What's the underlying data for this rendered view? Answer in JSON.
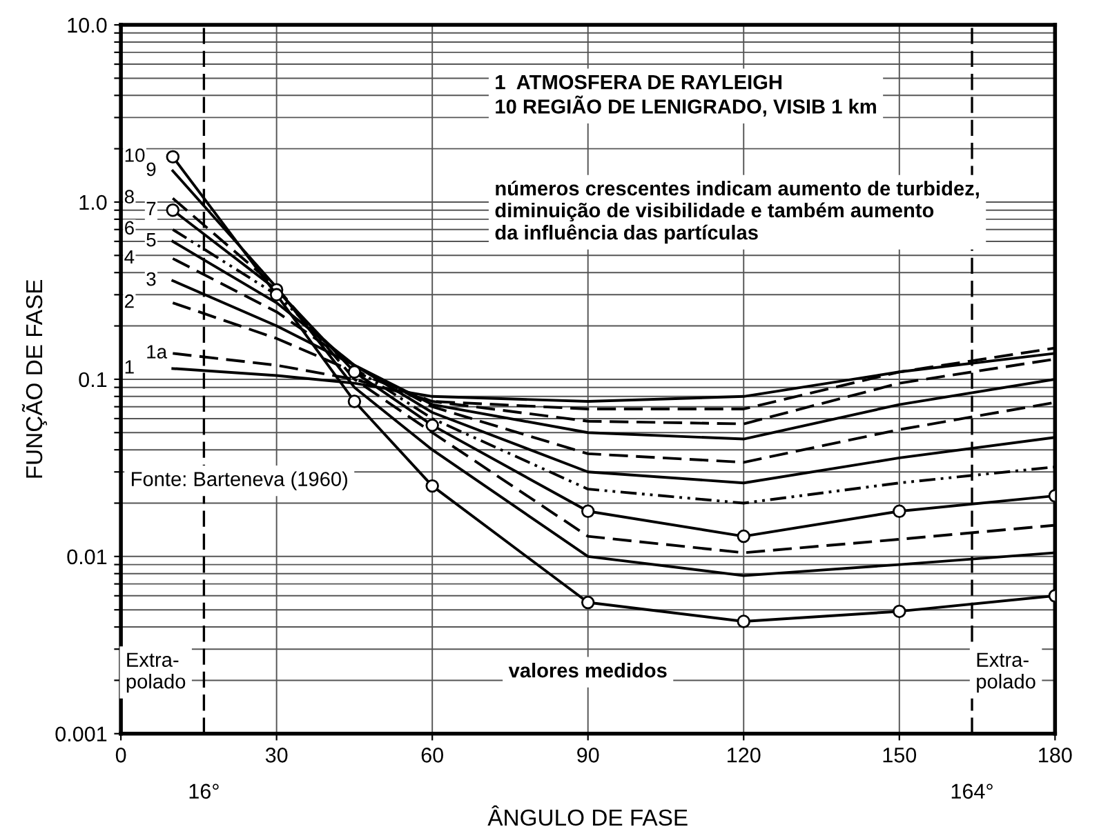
{
  "chart_data": {
    "type": "line",
    "xlabel": "ÂNGULO DE FASE",
    "ylabel": "FUNÇÃO DE FASE",
    "log": "y",
    "xlim": [
      0,
      180
    ],
    "ylim": [
      0.001,
      10
    ],
    "xticks": [
      0,
      30,
      60,
      90,
      120,
      150,
      180
    ],
    "yticks": [
      {
        "value": 0.001,
        "label": "0.001"
      },
      {
        "value": 0.002,
        "label": null
      },
      {
        "value": 0.003,
        "label": null
      },
      {
        "value": 0.004,
        "label": null
      },
      {
        "value": 0.005,
        "label": null
      },
      {
        "value": 0.006,
        "label": null
      },
      {
        "value": 0.007,
        "label": null
      },
      {
        "value": 0.008,
        "label": null
      },
      {
        "value": 0.009,
        "label": null
      },
      {
        "value": 0.01,
        "label": "0.01"
      },
      {
        "value": 0.02,
        "label": null
      },
      {
        "value": 0.03,
        "label": null
      },
      {
        "value": 0.04,
        "label": null
      },
      {
        "value": 0.05,
        "label": null
      },
      {
        "value": 0.06,
        "label": null
      },
      {
        "value": 0.07,
        "label": null
      },
      {
        "value": 0.08,
        "label": null
      },
      {
        "value": 0.09,
        "label": null
      },
      {
        "value": 0.1,
        "label": "0.1"
      },
      {
        "value": 0.2,
        "label": null
      },
      {
        "value": 0.3,
        "label": null
      },
      {
        "value": 0.4,
        "label": null
      },
      {
        "value": 0.5,
        "label": null
      },
      {
        "value": 0.6,
        "label": null
      },
      {
        "value": 0.7,
        "label": null
      },
      {
        "value": 0.8,
        "label": null
      },
      {
        "value": 0.9,
        "label": null
      },
      {
        "value": 1,
        "label": "1.0"
      },
      {
        "value": 2,
        "label": null
      },
      {
        "value": 3,
        "label": null
      },
      {
        "value": 4,
        "label": null
      },
      {
        "value": 5,
        "label": null
      },
      {
        "value": 6,
        "label": null
      },
      {
        "value": 7,
        "label": null
      },
      {
        "value": 8,
        "label": null
      },
      {
        "value": 9,
        "label": null
      },
      {
        "value": 10,
        "label": "10.0"
      }
    ],
    "grid": true,
    "x": [
      10,
      30,
      45,
      60,
      90,
      120,
      150,
      180
    ],
    "series": [
      {
        "name": "1",
        "color": "#000000",
        "line_style": "solid",
        "values": [
          0.115,
          0.105,
          0.095,
          0.08,
          0.075,
          0.08,
          0.11,
          0.14
        ]
      },
      {
        "name": "1a",
        "color": "#000000",
        "line_style": "dashed",
        "values": [
          0.14,
          0.12,
          0.1,
          0.075,
          0.068,
          0.068,
          0.11,
          0.15
        ]
      },
      {
        "name": "2",
        "color": "#000000",
        "line_style": "dashed",
        "values": [
          0.27,
          0.17,
          0.11,
          0.075,
          0.058,
          0.056,
          0.095,
          0.13
        ]
      },
      {
        "name": "3",
        "color": "#000000",
        "line_style": "solid",
        "values": [
          0.36,
          0.2,
          0.12,
          0.072,
          0.05,
          0.046,
          0.072,
          0.1
        ]
      },
      {
        "name": "4",
        "color": "#000000",
        "line_style": "dashed",
        "values": [
          0.48,
          0.24,
          0.12,
          0.07,
          0.038,
          0.034,
          0.052,
          0.074
        ]
      },
      {
        "name": "5",
        "color": "#000000",
        "line_style": "solid",
        "values": [
          0.6,
          0.27,
          0.12,
          0.065,
          0.03,
          0.026,
          0.036,
          0.047
        ]
      },
      {
        "name": "6",
        "color": "#000000",
        "line_style": "dotted",
        "values": [
          0.7,
          0.3,
          0.115,
          0.06,
          0.024,
          0.02,
          0.026,
          0.032
        ]
      },
      {
        "name": "7",
        "color": "#000000",
        "line_style": "solid",
        "marker": "circle",
        "values": [
          0.9,
          0.32,
          0.11,
          0.055,
          0.018,
          0.013,
          0.018,
          0.022
        ]
      },
      {
        "name": "8",
        "color": "#000000",
        "line_style": "dashed",
        "values": [
          1.05,
          0.33,
          0.1,
          0.05,
          0.013,
          0.0105,
          0.0125,
          0.015
        ]
      },
      {
        "name": "9",
        "color": "#000000",
        "line_style": "solid",
        "values": [
          1.5,
          0.33,
          0.09,
          0.04,
          0.01,
          0.0078,
          0.009,
          0.0105
        ]
      },
      {
        "name": "10",
        "color": "#000000",
        "line_style": "solid",
        "marker": "circle",
        "values": [
          1.8,
          0.3,
          0.075,
          0.025,
          0.0055,
          0.0043,
          0.0049,
          0.006
        ]
      }
    ],
    "ref_lines": [
      {
        "axis": "x",
        "value": 16,
        "label": "16°",
        "line_style": "dashed",
        "color": "#000000"
      },
      {
        "axis": "x",
        "value": 164,
        "label": "164°",
        "line_style": "dashed",
        "color": "#000000"
      }
    ],
    "annotations": [
      "1  ATMOSFERA DE RAYLEIGH\n10 REGIÃO DE LENIGRADO, VISIB 1 km",
      "números crescentes indicam aumento de turbidez,\ndiminuição de visibilidade e também aumento\nda influência das partículas",
      "Fonte: Barteneva (1960)",
      "Extra-\npolado",
      "valores medidos",
      "Extra-\npolado"
    ]
  }
}
